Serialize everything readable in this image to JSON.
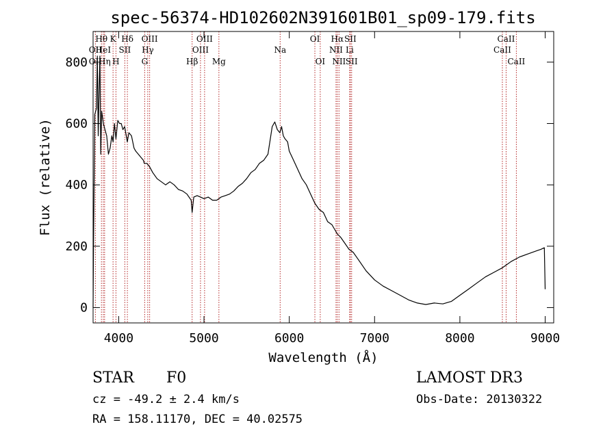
{
  "chart_data": {
    "type": "line",
    "title": "spec-56374-HD102602N391601B01_sp09-179.fits",
    "xlabel": "Wavelength (Å)",
    "ylabel": "Flux (relative)",
    "xlim": [
      3700,
      9100
    ],
    "ylim": [
      -50,
      900
    ],
    "xticks": [
      4000,
      5000,
      6000,
      7000,
      8000,
      9000
    ],
    "xtick_labels": [
      "4000",
      "5000",
      "6000",
      "7000",
      "8000",
      "9000"
    ],
    "yticks": [
      0,
      200,
      400,
      600,
      800
    ],
    "ytick_labels": [
      "0",
      "200",
      "400",
      "600",
      "800"
    ],
    "series": [
      {
        "name": "spectrum",
        "x": [
          3700,
          3705,
          3720,
          3740,
          3750,
          3760,
          3770,
          3780,
          3790,
          3800,
          3820,
          3840,
          3860,
          3880,
          3900,
          3920,
          3934,
          3950,
          3968,
          3990,
          4010,
          4030,
          4050,
          4070,
          4101,
          4120,
          4150,
          4180,
          4200,
          4230,
          4260,
          4290,
          4300,
          4330,
          4360,
          4400,
          4450,
          4500,
          4550,
          4600,
          4650,
          4700,
          4750,
          4800,
          4850,
          4861,
          4880,
          4920,
          4960,
          5000,
          5050,
          5100,
          5150,
          5200,
          5250,
          5300,
          5350,
          5400,
          5450,
          5500,
          5550,
          5600,
          5650,
          5700,
          5750,
          5800,
          5830,
          5860,
          5890,
          5910,
          5930,
          5950,
          5980,
          6000,
          6050,
          6100,
          6150,
          6200,
          6250,
          6300,
          6350,
          6400,
          6450,
          6500,
          6563,
          6600,
          6650,
          6700,
          6750,
          6800,
          6900,
          7000,
          7100,
          7200,
          7300,
          7400,
          7500,
          7600,
          7700,
          7800,
          7900,
          8000,
          8100,
          8200,
          8300,
          8400,
          8500,
          8550,
          8600,
          8700,
          8800,
          8900,
          8950,
          8990,
          9000
        ],
        "y": [
          0,
          200,
          630,
          650,
          820,
          560,
          700,
          820,
          500,
          640,
          600,
          580,
          560,
          500,
          520,
          560,
          540,
          600,
          550,
          610,
          600,
          600,
          580,
          590,
          540,
          570,
          560,
          520,
          510,
          500,
          490,
          480,
          470,
          470,
          460,
          440,
          420,
          410,
          400,
          410,
          400,
          385,
          380,
          370,
          350,
          310,
          360,
          365,
          360,
          355,
          360,
          350,
          350,
          360,
          365,
          370,
          380,
          395,
          405,
          420,
          440,
          450,
          470,
          480,
          500,
          590,
          605,
          580,
          570,
          590,
          560,
          550,
          540,
          510,
          480,
          450,
          420,
          400,
          370,
          340,
          320,
          310,
          280,
          270,
          240,
          230,
          210,
          190,
          180,
          160,
          120,
          90,
          70,
          55,
          40,
          25,
          15,
          10,
          15,
          12,
          20,
          40,
          60,
          80,
          100,
          115,
          130,
          140,
          150,
          165,
          175,
          185,
          190,
          195,
          60
        ]
      }
    ],
    "annotations": {
      "lines": [
        {
          "label": "Hθ",
          "x": 3798,
          "row": 1
        },
        {
          "label": "OII",
          "x": 3727,
          "row": 2
        },
        {
          "label": "OII",
          "x": 3727,
          "row": 3
        },
        {
          "label": "HeI",
          "x": 3820,
          "row": 2
        },
        {
          "label": "Hη",
          "x": 3835,
          "row": 3
        },
        {
          "label": "K",
          "x": 3934,
          "row": 1
        },
        {
          "label": "SII",
          "x": 4072,
          "row": 2
        },
        {
          "label": "H",
          "x": 3968,
          "row": 3
        },
        {
          "label": "Hδ",
          "x": 4102,
          "row": 1
        },
        {
          "label": "OIII",
          "x": 4363,
          "row": 1
        },
        {
          "label": "Hγ",
          "x": 4341,
          "row": 2
        },
        {
          "label": "G",
          "x": 4305,
          "row": 3
        },
        {
          "label": "OIII",
          "x": 5007,
          "row": 1
        },
        {
          "label": "OIII",
          "x": 4959,
          "row": 2
        },
        {
          "label": "Hβ",
          "x": 4861,
          "row": 3
        },
        {
          "label": "Mg",
          "x": 5175,
          "row": 3
        },
        {
          "label": "Na",
          "x": 5893,
          "row": 2
        },
        {
          "label": "OI",
          "x": 6300,
          "row": 1
        },
        {
          "label": "OI",
          "x": 6363,
          "row": 3
        },
        {
          "label": "Hα",
          "x": 6563,
          "row": 1
        },
        {
          "label": "SII",
          "x": 6716,
          "row": 1
        },
        {
          "label": "NII",
          "x": 6548,
          "row": 2
        },
        {
          "label": "Li",
          "x": 6708,
          "row": 2
        },
        {
          "label": "NII",
          "x": 6583,
          "row": 3
        },
        {
          "label": "SII",
          "x": 6731,
          "row": 3
        },
        {
          "label": "CaII",
          "x": 8542,
          "row": 1
        },
        {
          "label": "CaII",
          "x": 8498,
          "row": 2
        },
        {
          "label": "CaII",
          "x": 8662,
          "row": 3
        }
      ],
      "line_color": "#b22222"
    },
    "line_color": "#000000",
    "grid": false,
    "legend": "none"
  },
  "info": {
    "object_class": "STAR",
    "subclass": "F0",
    "survey": "LAMOST DR3",
    "cz": "cz = -49.2 ± 2.4 km/s",
    "obs_date": "Obs-Date: 20130322",
    "coords": "RA = 158.11170, DEC =  40.02575"
  }
}
